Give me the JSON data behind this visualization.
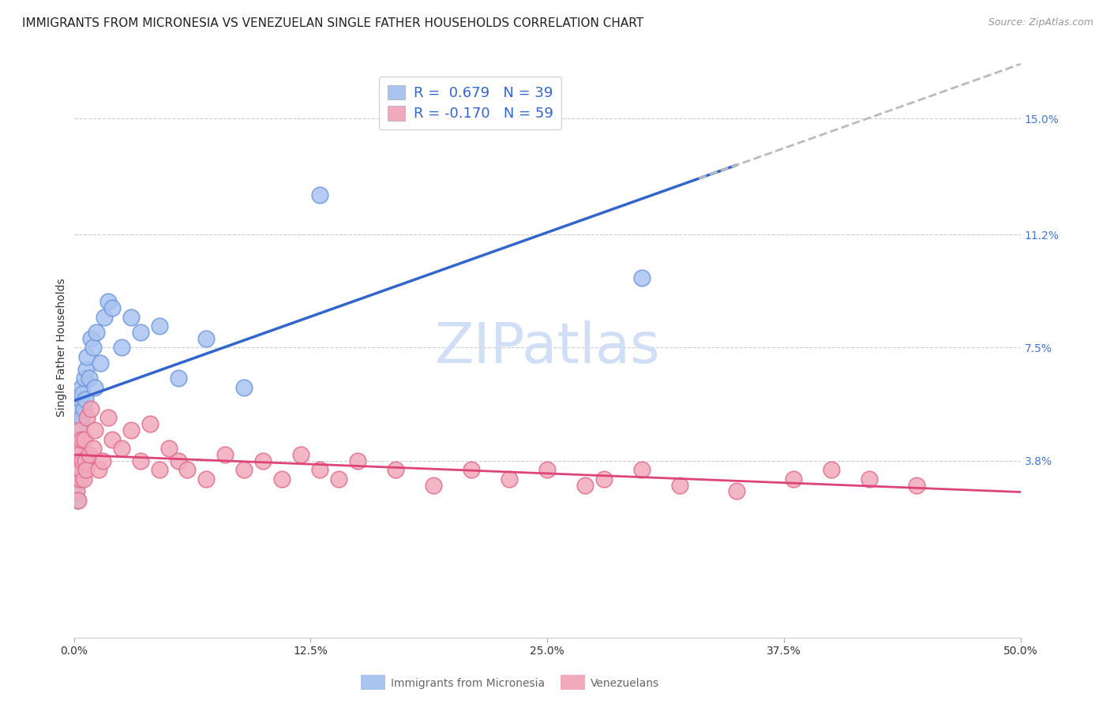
{
  "title": "IMMIGRANTS FROM MICRONESIA VS VENEZUELAN SINGLE FATHER HOUSEHOLDS CORRELATION CHART",
  "source": "Source: ZipAtlas.com",
  "ylabel": "Single Father Households",
  "x_min": 0.0,
  "x_max": 50.0,
  "y_min": -2.0,
  "y_max": 17.0,
  "y_ticks": [
    3.8,
    7.5,
    11.2,
    15.0
  ],
  "x_ticks": [
    0.0,
    12.5,
    25.0,
    37.5,
    50.0
  ],
  "blue_label": "Immigrants from Micronesia",
  "pink_label": "Venezuelans",
  "blue_R": 0.679,
  "blue_N": 39,
  "pink_R": -0.17,
  "pink_N": 59,
  "blue_color": "#aac4f0",
  "pink_color": "#f0aabb",
  "blue_dot_edge": "#7099dd",
  "pink_dot_edge": "#e07090",
  "blue_line_color": "#3366cc",
  "pink_line_color": "#dd4477",
  "dashed_color": "#bbbbbb",
  "watermark_text": "ZIPatlas",
  "blue_points_x": [
    0.05,
    0.08,
    0.1,
    0.12,
    0.15,
    0.18,
    0.2,
    0.22,
    0.25,
    0.28,
    0.3,
    0.32,
    0.35,
    0.38,
    0.4,
    0.45,
    0.5,
    0.55,
    0.6,
    0.65,
    0.7,
    0.8,
    0.9,
    1.0,
    1.1,
    1.2,
    1.4,
    1.6,
    1.8,
    2.0,
    2.5,
    3.0,
    3.5,
    4.5,
    5.5,
    7.0,
    9.0,
    13.0,
    30.0
  ],
  "blue_points_y": [
    3.5,
    4.0,
    3.0,
    3.8,
    4.5,
    3.2,
    2.5,
    4.2,
    5.5,
    3.6,
    5.0,
    3.8,
    5.8,
    6.2,
    5.2,
    6.0,
    5.5,
    6.5,
    5.8,
    6.8,
    7.2,
    6.5,
    7.8,
    7.5,
    6.2,
    8.0,
    7.0,
    8.5,
    9.0,
    8.8,
    7.5,
    8.5,
    8.0,
    8.2,
    6.5,
    7.8,
    6.2,
    12.5,
    9.8
  ],
  "pink_points_x": [
    0.05,
    0.08,
    0.1,
    0.12,
    0.15,
    0.18,
    0.2,
    0.22,
    0.25,
    0.28,
    0.3,
    0.32,
    0.35,
    0.4,
    0.45,
    0.5,
    0.55,
    0.6,
    0.65,
    0.7,
    0.8,
    0.9,
    1.0,
    1.1,
    1.3,
    1.5,
    1.8,
    2.0,
    2.5,
    3.0,
    3.5,
    4.0,
    4.5,
    5.0,
    5.5,
    6.0,
    7.0,
    8.0,
    9.0,
    10.0,
    11.0,
    12.0,
    13.0,
    14.0,
    15.0,
    17.0,
    19.0,
    21.0,
    23.0,
    25.0,
    27.0,
    28.0,
    30.0,
    32.0,
    35.0,
    38.0,
    40.0,
    42.0,
    44.5
  ],
  "pink_points_y": [
    3.8,
    3.2,
    4.5,
    3.5,
    2.8,
    4.2,
    3.8,
    2.5,
    4.0,
    3.5,
    3.2,
    4.8,
    3.5,
    4.5,
    3.8,
    3.2,
    4.5,
    3.8,
    3.5,
    5.2,
    4.0,
    5.5,
    4.2,
    4.8,
    3.5,
    3.8,
    5.2,
    4.5,
    4.2,
    4.8,
    3.8,
    5.0,
    3.5,
    4.2,
    3.8,
    3.5,
    3.2,
    4.0,
    3.5,
    3.8,
    3.2,
    4.0,
    3.5,
    3.2,
    3.8,
    3.5,
    3.0,
    3.5,
    3.2,
    3.5,
    3.0,
    3.2,
    3.5,
    3.0,
    2.8,
    3.2,
    3.5,
    3.2,
    3.0
  ],
  "background_color": "#ffffff",
  "grid_color": "#cccccc",
  "title_fontsize": 11,
  "axis_label_fontsize": 10,
  "tick_fontsize": 10,
  "legend_fontsize": 13,
  "legend_value_color": "#3366cc",
  "watermark_fontsize": 52,
  "watermark_color": "#d0dff5",
  "right_axis_color": "#4477cc"
}
